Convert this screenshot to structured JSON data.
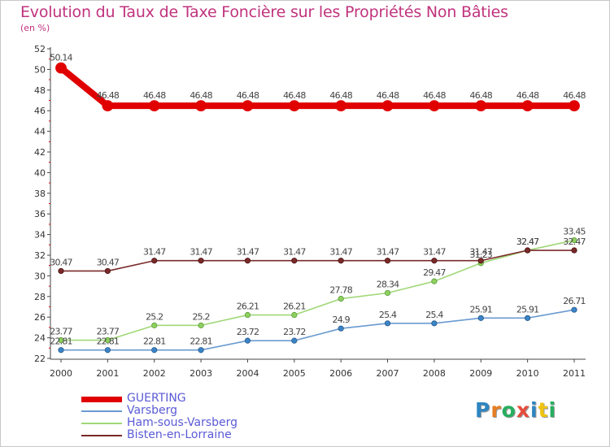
{
  "title": "Evolution du Taux de Taxe Foncière sur les Propriétés Non Bâties",
  "unit_label": "(en %)",
  "logo": {
    "text": "Proxiti",
    "letters": [
      "P",
      "r",
      "o",
      "x",
      "i",
      "t",
      "i"
    ],
    "colors": [
      "#2e86c1",
      "#e67e22",
      "#27ae60",
      "#e74c3c",
      "#2e86c1",
      "#f1c40f",
      "#27ae60"
    ]
  },
  "chart_data": {
    "type": "line",
    "title": "Evolution du Taux de Taxe Foncière sur les Propriétés Non Bâties",
    "ylabel": "(en %)",
    "xlabel": "",
    "ylim": [
      22,
      52
    ],
    "y_ticks": [
      22,
      24,
      26,
      28,
      30,
      32,
      34,
      36,
      38,
      40,
      42,
      44,
      46,
      48,
      50,
      52
    ],
    "categories": [
      "2000",
      "2001",
      "2002",
      "2003",
      "2004",
      "2005",
      "2006",
      "2007",
      "2008",
      "2009",
      "2010",
      "2011"
    ],
    "series": [
      {
        "name": "GUERTING",
        "color": "#e00000",
        "values": [
          50.14,
          46.48,
          46.48,
          46.48,
          46.48,
          46.48,
          46.48,
          46.48,
          46.48,
          46.48,
          46.48,
          46.48
        ],
        "labels": [
          "50.14",
          "46.48",
          "46.48",
          "46.48",
          "46.48",
          "46.48",
          "46.48",
          "46.48",
          "46.48",
          "46.48",
          "46.48",
          "46.48"
        ]
      },
      {
        "name": "Varsberg",
        "color": "#6a9ad0",
        "values": [
          22.81,
          22.81,
          22.81,
          22.81,
          23.72,
          23.72,
          24.9,
          25.4,
          25.4,
          25.91,
          25.91,
          26.71
        ],
        "labels": [
          "22.81",
          "22.81",
          "22.81",
          "22.81",
          "23.72",
          "23.72",
          "24.9",
          "25.4",
          "25.4",
          "25.91",
          "25.91",
          "26.71"
        ]
      },
      {
        "name": "Ham-sous-Varsberg",
        "color": "#a0d878",
        "values": [
          23.77,
          23.77,
          25.2,
          25.2,
          26.21,
          26.21,
          27.78,
          28.34,
          29.47,
          31.23,
          32.47,
          33.45
        ],
        "labels": [
          "23.77",
          "23.77",
          "25.2",
          "25.2",
          "26.21",
          "26.21",
          "27.78",
          "28.34",
          "29.47",
          "31.23",
          "32.47",
          "33.45"
        ]
      },
      {
        "name": "Bisten-en-Lorraine",
        "color": "#7a2a2a",
        "values": [
          30.47,
          30.47,
          31.47,
          31.47,
          31.47,
          31.47,
          31.47,
          31.47,
          31.47,
          31.47,
          32.47,
          32.47
        ],
        "labels": [
          "30.47",
          "30.47",
          "31.47",
          "31.47",
          "31.47",
          "31.47",
          "31.47",
          "31.47",
          "31.47",
          "31.47",
          "32.47",
          "32.47"
        ]
      }
    ],
    "grid": false,
    "legend_position": "bottom-left"
  }
}
